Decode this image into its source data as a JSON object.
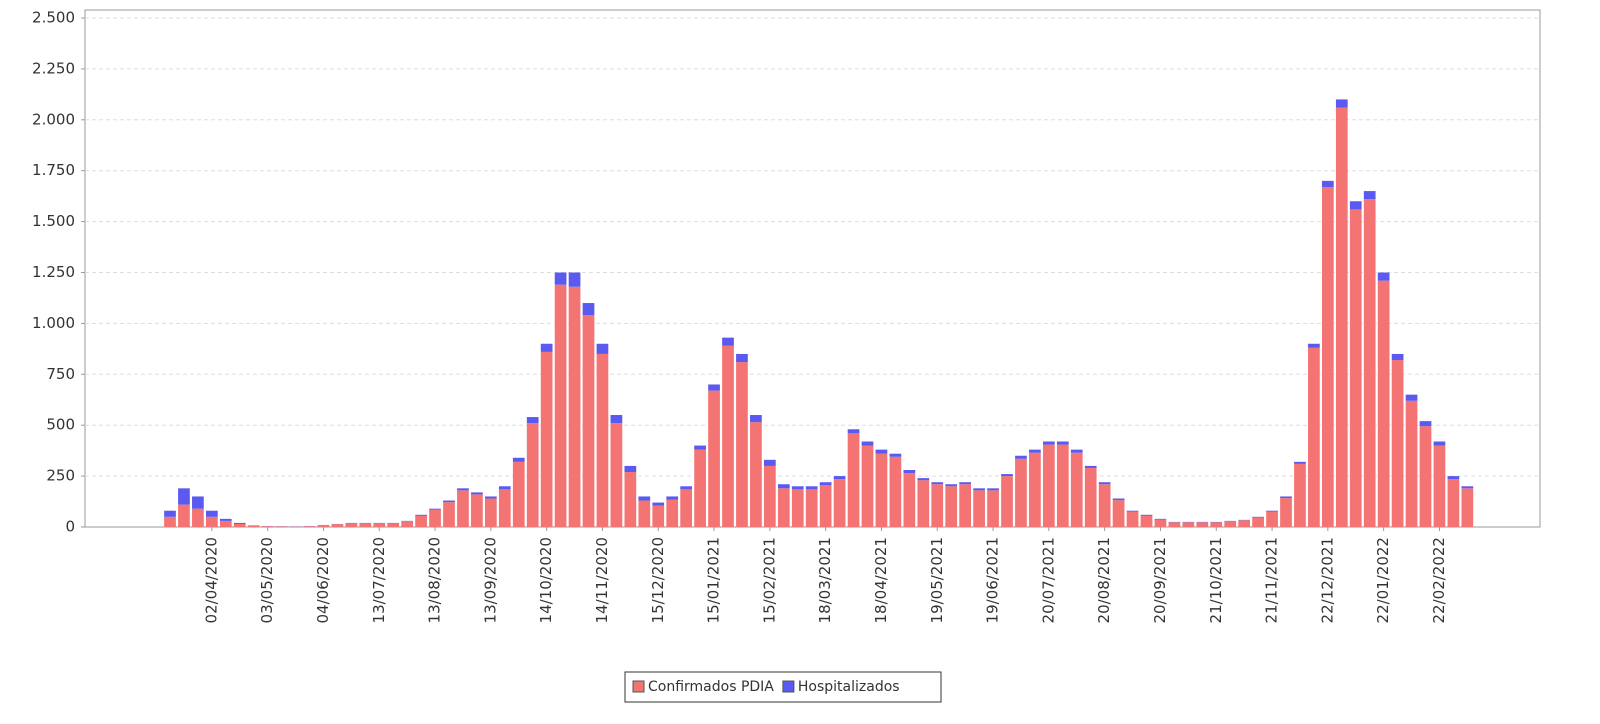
{
  "chart_data": {
    "type": "stacked_bar",
    "categories": [
      null,
      null,
      null,
      "02/04/2020",
      null,
      null,
      null,
      "03/05/2020",
      null,
      null,
      null,
      "04/06/2020",
      null,
      null,
      null,
      "13/07/2020",
      null,
      null,
      null,
      "13/08/2020",
      null,
      null,
      null,
      "13/09/2020",
      null,
      null,
      null,
      "14/10/2020",
      null,
      null,
      null,
      "14/11/2020",
      null,
      null,
      null,
      "15/12/2020",
      null,
      null,
      null,
      "15/01/2021",
      null,
      null,
      null,
      "15/02/2021",
      null,
      null,
      null,
      "18/03/2021",
      null,
      null,
      null,
      "18/04/2021",
      null,
      null,
      null,
      "19/05/2021",
      null,
      null,
      null,
      "19/06/2021",
      null,
      null,
      null,
      "20/07/2021",
      null,
      null,
      null,
      "20/08/2021",
      null,
      null,
      null,
      "20/09/2021",
      null,
      null,
      null,
      "21/10/2021",
      null,
      null,
      null,
      "21/11/2021",
      null,
      null,
      null,
      "22/12/2021",
      null,
      null,
      null,
      "22/01/2022",
      null,
      null,
      null,
      "22/02/2022",
      null,
      null
    ],
    "series": [
      {
        "name": "Confirmados PDIA",
        "color": "#f47474",
        "values": [
          50,
          110,
          90,
          50,
          30,
          15,
          6,
          4,
          3,
          2,
          4,
          9,
          14,
          18,
          18,
          18,
          18,
          28,
          55,
          85,
          122,
          180,
          160,
          140,
          185,
          320,
          510,
          860,
          1190,
          1180,
          1040,
          850,
          510,
          270,
          130,
          105,
          135,
          185,
          380,
          670,
          890,
          810,
          515,
          300,
          190,
          185,
          185,
          205,
          235,
          460,
          400,
          360,
          345,
          265,
          230,
          210,
          200,
          210,
          180,
          180,
          250,
          335,
          365,
          405,
          405,
          365,
          290,
          210,
          132,
          75,
          55,
          37,
          23,
          23,
          23,
          23,
          28,
          33,
          47,
          75,
          142,
          310,
          880,
          1670,
          2060,
          1560,
          1610,
          1210,
          820,
          620,
          495,
          400,
          235,
          190
        ]
      },
      {
        "name": "Hospitalizados",
        "color": "#5a5af0",
        "values": [
          30,
          80,
          60,
          30,
          10,
          5,
          2,
          1,
          1,
          1,
          1,
          1,
          1,
          2,
          2,
          2,
          2,
          2,
          5,
          5,
          8,
          10,
          10,
          10,
          15,
          20,
          30,
          40,
          60,
          70,
          60,
          50,
          40,
          30,
          20,
          15,
          15,
          15,
          20,
          30,
          40,
          40,
          35,
          30,
          20,
          15,
          15,
          15,
          15,
          20,
          20,
          20,
          15,
          15,
          10,
          10,
          10,
          10,
          10,
          10,
          10,
          15,
          15,
          15,
          15,
          15,
          10,
          10,
          8,
          5,
          5,
          3,
          2,
          2,
          2,
          2,
          2,
          2,
          3,
          5,
          8,
          10,
          20,
          30,
          40,
          40,
          40,
          40,
          30,
          30,
          25,
          20,
          15,
          10
        ]
      }
    ],
    "ylim": [
      0,
      2500
    ],
    "yticks": [
      0,
      250,
      500,
      750,
      {
        "value": 1000,
        "label": "1.000"
      },
      {
        "value": 1250,
        "label": "1.250"
      },
      {
        "value": 1500,
        "label": "1.500"
      },
      {
        "value": 1750,
        "label": "1.750"
      },
      {
        "value": 2000,
        "label": "2.000"
      },
      {
        "value": 2250,
        "label": "2.250"
      },
      {
        "value": 2500,
        "label": "2.500"
      }
    ],
    "grid": true
  }
}
